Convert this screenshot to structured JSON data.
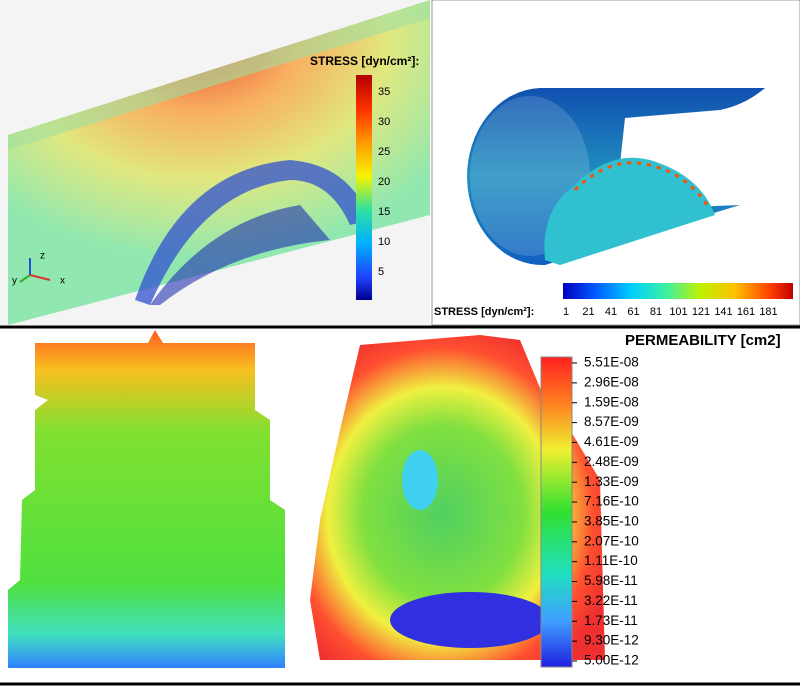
{
  "panels": {
    "top_left": {
      "colorbar": {
        "title": "STRESS [dyn/cm²]:",
        "ticks": [
          "35",
          "30",
          "25",
          "20",
          "15",
          "10",
          "5"
        ]
      },
      "axes": {
        "z": "z",
        "y": "y",
        "x": "x"
      }
    },
    "top_right": {
      "colorbar": {
        "title": "STRESS [dyn/cm²]:",
        "ticks": [
          "1",
          "21",
          "41",
          "61",
          "81",
          "101",
          "121",
          "141",
          "161",
          "181"
        ]
      }
    },
    "bottom_right": {
      "colorbar": {
        "title": "PERMEABILITY [cm2]",
        "ticks": [
          "5.51E-08",
          "2.96E-08",
          "1.59E-08",
          "8.57E-09",
          "4.61E-09",
          "2.48E-09",
          "1.33E-09",
          "7.16E-10",
          "3.85E-10",
          "2.07E-10",
          "1.11E-10",
          "5.98E-11",
          "3.22E-11",
          "1.73E-11",
          "9.30E-12",
          "5.00E-12"
        ]
      }
    }
  }
}
